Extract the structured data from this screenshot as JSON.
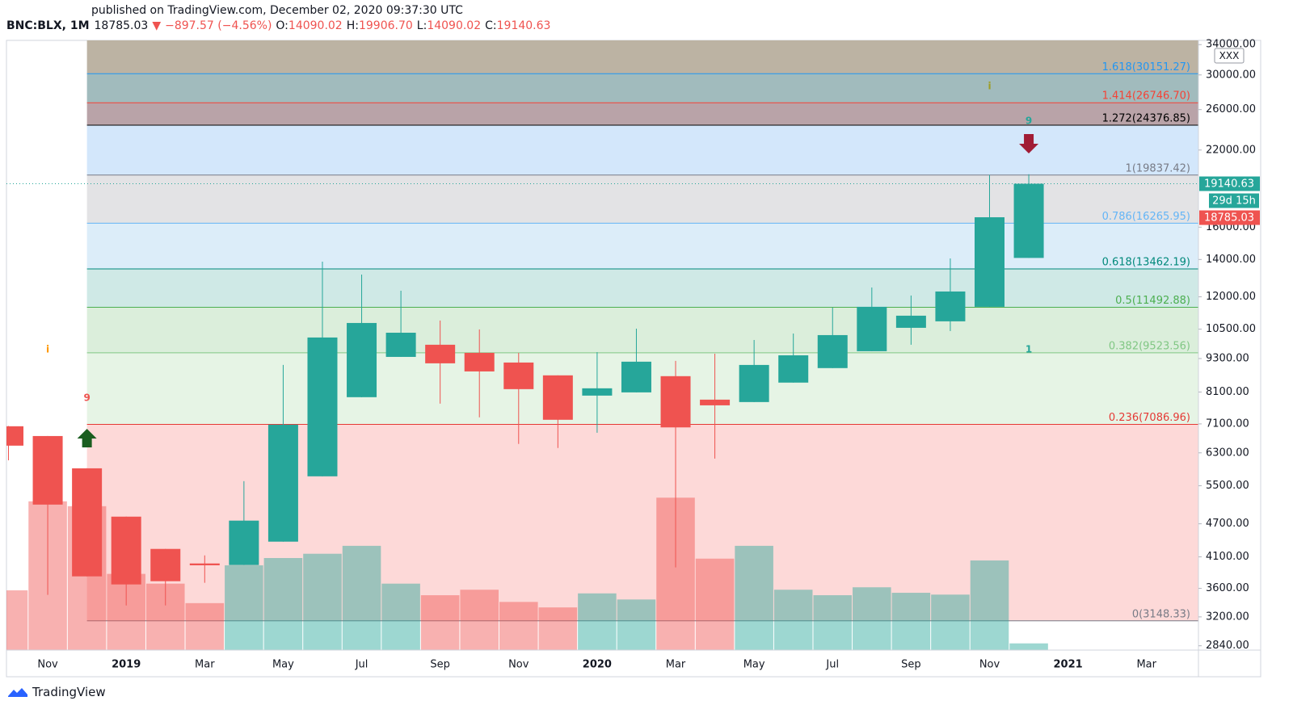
{
  "header": {
    "published": "published on TradingView.com, December 02, 2020 09:37:30 UTC",
    "symbol": "BNC:BLX, 1M",
    "last": "18785.03",
    "arrow": "▼",
    "change": "−897.57 (−4.56%)",
    "o_key": "O:",
    "o": "14090.02",
    "h_key": "H:",
    "h": "19906.70",
    "l_key": "L:",
    "l": "14090.02",
    "c_key": "C:",
    "c": "19140.63"
  },
  "footer": {
    "logo": "TradingView"
  },
  "chart_data": {
    "type": "candlestick",
    "log_scale": true,
    "up_color": "#26a69a",
    "down_color": "#ef5350",
    "categories": [
      null,
      "Nov",
      null,
      "2019",
      null,
      "Mar",
      null,
      "May",
      null,
      "Jul",
      null,
      "Sep",
      null,
      "Nov",
      null,
      "2020",
      null,
      "Mar",
      null,
      "May",
      null,
      "Jul",
      null,
      "Sep",
      null,
      "Nov",
      null,
      "2021",
      null,
      "Mar",
      null
    ],
    "open": [
      7031,
      6753,
      5910,
      4841,
      4237,
      3990,
      3964,
      4366,
      5718,
      7928,
      9363,
      9845,
      9521,
      9148,
      8676,
      7980,
      8087,
      8647,
      7848,
      7770,
      8420,
      8940,
      9585,
      10558,
      10845,
      11515,
      14090.02,
      null,
      null,
      null,
      null
    ],
    "high": [
      7040,
      6753,
      5910,
      4841,
      4237,
      4125,
      5605,
      9057,
      13875,
      13152,
      12306,
      10880,
      10488,
      9521,
      8676,
      9550,
      10521,
      9210,
      9489,
      10041,
      10312,
      11475,
      12471,
      12064,
      14060,
      19850,
      19906.7,
      null,
      null,
      null,
      null
    ],
    "low": [
      6110,
      3504,
      3783,
      3355,
      3355,
      3684,
      3964,
      4366,
      5718,
      7928,
      9363,
      7720,
      7295,
      6536,
      6428,
      6845,
      8087,
      3925,
      6153,
      7770,
      8420,
      8940,
      9585,
      9845,
      10418,
      11515,
      14090.02,
      null,
      null,
      null,
      null
    ],
    "close": [
      6490,
      5088,
      3783,
      3659,
      3708,
      3960,
      4762,
      7077,
      10144,
      10771,
      10346,
      9118,
      8818,
      8196,
      7222,
      8224,
      9180,
      6998,
      7666,
      9057,
      9425,
      10245,
      11515,
      11100,
      12266,
      16667,
      19140.63,
      null,
      null,
      null,
      null
    ],
    "volume": [
      98,
      244,
      236,
      125,
      109,
      77,
      139,
      151,
      158,
      171,
      109,
      90,
      99,
      79,
      70,
      93,
      83,
      250,
      150,
      171,
      99,
      90,
      103,
      94,
      91,
      147,
      11,
      null,
      null,
      null,
      null
    ],
    "volume_lim": [
      0,
      1000
    ],
    "ylim": [
      2790,
      34600
    ],
    "yticks": [
      {
        "value": 34000,
        "label": "34000.00"
      },
      {
        "value": 30000,
        "label": "30000.00"
      },
      {
        "value": 26000,
        "label": "26000.00"
      },
      {
        "value": 22000,
        "label": "22000.00"
      },
      {
        "value": 16000,
        "label": "16000.00"
      },
      {
        "value": 14000,
        "label": "14000.00"
      },
      {
        "value": 12000,
        "label": "12000.00"
      },
      {
        "value": 10500,
        "label": "10500.00"
      },
      {
        "value": 9300,
        "label": "9300.00"
      },
      {
        "value": 8100,
        "label": "8100.00"
      },
      {
        "value": 7100,
        "label": "7100.00"
      },
      {
        "value": 6300,
        "label": "6300.00"
      },
      {
        "value": 5500,
        "label": "5500.00"
      },
      {
        "value": 4700,
        "label": "4700.00"
      },
      {
        "value": 4100,
        "label": "4100.00"
      },
      {
        "value": 3600,
        "label": "3600.00"
      },
      {
        "value": 3200,
        "label": "3200.00"
      },
      {
        "value": 2840,
        "label": "2840.00"
      }
    ],
    "fib_levels": [
      {
        "price": 3148.33,
        "label": "0(3148.33)",
        "color": "#787b86",
        "zone": "#fdd9d8"
      },
      {
        "price": 7086.96,
        "label": "0.236(7086.96)",
        "color": "#e53935",
        "zone": "#e6f4e5"
      },
      {
        "price": 9523.56,
        "label": "0.382(9523.56)",
        "color": "#81c784",
        "zone": "#dbeedb"
      },
      {
        "price": 11492.88,
        "label": "0.5(11492.88)",
        "color": "#4caf50",
        "zone": "#cfe9e6"
      },
      {
        "price": 13462.19,
        "label": "0.618(13462.19)",
        "color": "#00897b",
        "zone": "#dcedf9"
      },
      {
        "price": 16265.95,
        "label": "0.786(16265.95)",
        "color": "#64b5f6",
        "zone": "#e3e3e5"
      },
      {
        "price": 19837.42,
        "label": "1(19837.42)",
        "color": "#787b86",
        "zone": "#d3e7fb"
      },
      {
        "price": 24376.85,
        "label": "1.272(24376.85)",
        "color": "#000000",
        "zone": "#b9a3a8"
      },
      {
        "price": 26746.7,
        "label": "1.414(26746.70)",
        "color": "#f44336",
        "zone": "#a1bbbd"
      },
      {
        "price": 30151.27,
        "label": "1.618(30151.27)",
        "color": "#2196f3",
        "zone": "#bcb3a3"
      }
    ],
    "fib_start": 2,
    "annotations": [
      {
        "text": "9",
        "index": 2,
        "price": 7900,
        "color": "#ef5350"
      },
      {
        "text": "i",
        "index": 1,
        "price": 9650,
        "color": "#ff9800"
      },
      {
        "text": "i",
        "index": 25,
        "price": 28600,
        "color": "#9e9d24"
      },
      {
        "text": "9",
        "index": 26,
        "price": 24800,
        "color": "#26a69a"
      },
      {
        "text": "1",
        "index": 26,
        "price": 9650,
        "color": "#26a69a"
      }
    ],
    "badges": [
      {
        "text": "19140.63",
        "price": 19140.63,
        "color": "#26a69a"
      },
      {
        "text": "29d 15h",
        "color": "#26a69a"
      },
      {
        "text": "18785.03",
        "color": "#ef5350"
      }
    ],
    "scale_box": "XXX"
  }
}
